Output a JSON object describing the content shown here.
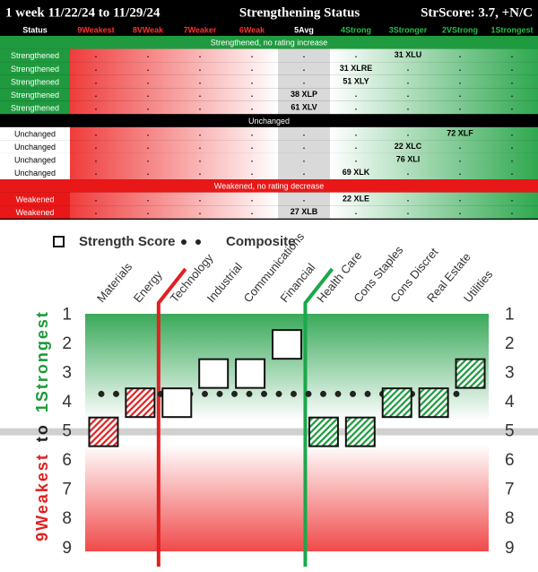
{
  "table": {
    "title": "1 week 11/22/24 to 11/29/24",
    "subtitle": "Strengthening Status",
    "score": "StrScore: 3.7, +N/C",
    "columns": [
      "Status",
      "9Weakest",
      "8VWeak",
      "7Weaker",
      "6Weak",
      "5Avg",
      "4Strong",
      "3Stronger",
      "2VStrong",
      "1Strongest"
    ],
    "sections": [
      {
        "label": "Strengthened, no rating increase",
        "rows": [
          {
            "status": "Strengthened",
            "cells": [
              ".",
              ".",
              ".",
              ".",
              ".",
              ".",
              "31 XLU",
              ".",
              "."
            ]
          },
          {
            "status": "Strengthened",
            "cells": [
              ".",
              ".",
              ".",
              ".",
              ".",
              "31 XLRE",
              ".",
              ".",
              "."
            ]
          },
          {
            "status": "Strengthened",
            "cells": [
              ".",
              ".",
              ".",
              ".",
              ".",
              "51 XLY",
              ".",
              ".",
              "."
            ]
          },
          {
            "status": "Strengthened",
            "cells": [
              ".",
              ".",
              ".",
              ".",
              "38 XLP",
              ".",
              ".",
              ".",
              "."
            ]
          },
          {
            "status": "Strengthened",
            "cells": [
              ".",
              ".",
              ".",
              ".",
              "61 XLV",
              ".",
              ".",
              ".",
              "."
            ]
          }
        ]
      },
      {
        "label": "Unchanged",
        "rows": [
          {
            "status": "Unchanged",
            "cells": [
              ".",
              ".",
              ".",
              ".",
              ".",
              ".",
              ".",
              "72 XLF",
              "."
            ]
          },
          {
            "status": "Unchanged",
            "cells": [
              ".",
              ".",
              ".",
              ".",
              ".",
              ".",
              "22 XLC",
              ".",
              "."
            ]
          },
          {
            "status": "Unchanged",
            "cells": [
              ".",
              ".",
              ".",
              ".",
              ".",
              ".",
              "76 XLI",
              ".",
              "."
            ]
          },
          {
            "status": "Unchanged",
            "cells": [
              ".",
              ".",
              ".",
              ".",
              ".",
              "69 XLK",
              ".",
              ".",
              "."
            ]
          }
        ]
      },
      {
        "label": "Weakened, no rating decrease",
        "rows": [
          {
            "status": "Weakened",
            "cells": [
              ".",
              ".",
              ".",
              ".",
              ".",
              "22 XLE",
              ".",
              ".",
              "."
            ]
          },
          {
            "status": "Weakened",
            "cells": [
              ".",
              ".",
              ".",
              ".",
              "27 XLB",
              ".",
              ".",
              ".",
              "."
            ]
          }
        ]
      }
    ]
  },
  "chart_data": {
    "type": "square-scatter",
    "categories": [
      "Materials",
      "Energy",
      "Technology",
      "Industrial",
      "Communications",
      "Financial",
      "Health Care",
      "Cons Staples",
      "Cons Discret",
      "Real Estate",
      "Utilities"
    ],
    "series": [
      {
        "name": "Strength Score",
        "values": [
          5,
          4,
          4,
          3,
          3,
          2,
          5,
          5,
          4,
          4,
          3
        ],
        "colors": [
          "#e02020",
          "#e02020",
          "#ffffff",
          "#ffffff",
          "#ffffff",
          "#ffffff",
          "#1a9a3a",
          "#1a9a3a",
          "#1a9a3a",
          "#1a9a3a",
          "#1a9a3a"
        ]
      },
      {
        "name": "Composite",
        "value": 3.7,
        "color": "#222222"
      }
    ],
    "y_label_parts": [
      "9Weakest",
      "to",
      "1Strongest"
    ],
    "ylim": [
      0.95,
      9.1
    ],
    "yticks": [
      1,
      2,
      3,
      4,
      5,
      6,
      7,
      8,
      9
    ],
    "reverse_y": true,
    "reference_line": 5
  }
}
